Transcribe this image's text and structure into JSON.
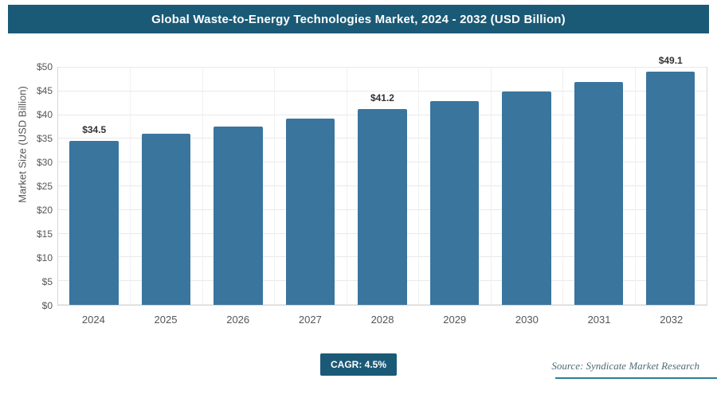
{
  "header": {
    "title": "Global Waste-to-Energy Technologies Market, 2024 - 2032 (USD Billion)"
  },
  "chart_data": {
    "type": "bar",
    "categories": [
      "2024",
      "2025",
      "2026",
      "2027",
      "2028",
      "2029",
      "2030",
      "2031",
      "2032"
    ],
    "values": [
      34.5,
      36.0,
      37.6,
      39.3,
      41.2,
      43.0,
      44.9,
      46.9,
      49.1
    ],
    "value_labels": [
      "$34.5",
      "",
      "",
      "",
      "$41.2",
      "",
      "",
      "",
      "$49.1"
    ],
    "title": "Global Waste-to-Energy Technologies Market, 2024 - 2032 (USD Billion)",
    "xlabel": "",
    "ylabel": "Market Size (USD Billion)",
    "ylim": [
      0,
      50
    ],
    "ytick_step": 5,
    "ytick_labels": [
      "$0",
      "$5",
      "$10",
      "$15",
      "$20",
      "$25",
      "$30",
      "$35",
      "$40",
      "$45",
      "$50"
    ],
    "grid": true,
    "legend": "none"
  },
  "colors": {
    "header_bg": "#1b5a76",
    "bar": "#3a759e",
    "badge_bg": "#1b5a76",
    "source_line": "#2b7f96"
  },
  "footer": {
    "cagr_label": "CAGR: 4.5%",
    "source": "Source: Syndicate Market Research"
  }
}
